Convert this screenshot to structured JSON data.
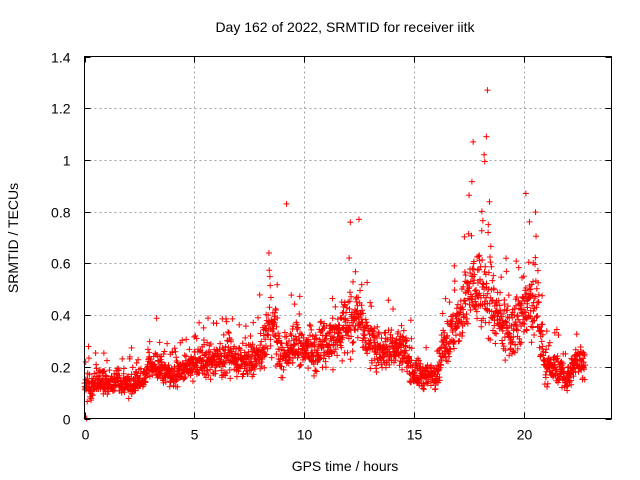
{
  "chart_data": {
    "type": "scatter",
    "title": "Day 162 of 2022, SRMTID for receiver iitk",
    "xlabel": "GPS time / hours",
    "ylabel": "SRMTID / TECUs",
    "xlim": [
      0,
      24
    ],
    "ylim": [
      0,
      1.4
    ],
    "xticks": [
      0,
      5,
      10,
      15,
      20
    ],
    "yticks": [
      0,
      0.2,
      0.4,
      0.6,
      0.8,
      1,
      1.2,
      1.4
    ],
    "xtick_labels": [
      "0",
      "5",
      "10",
      "15",
      "20"
    ],
    "ytick_labels": [
      "0",
      "0.2",
      "0.4",
      "0.6",
      "0.8",
      "1",
      "1.2",
      "1.4"
    ],
    "grid": true,
    "marker": "+",
    "color": "#ff0000",
    "series": [
      {
        "name": "SRMTID",
        "envelope": {
          "hours": [
            0,
            0.5,
            1,
            1.5,
            2,
            2.5,
            3,
            3.5,
            4,
            4.5,
            5,
            5.5,
            6,
            6.5,
            7,
            7.5,
            8,
            8.5,
            9,
            9.5,
            10,
            10.5,
            11,
            11.5,
            12,
            12.5,
            13,
            13.5,
            14,
            14.5,
            15,
            15.5,
            16,
            16.5,
            17,
            17.5,
            18,
            18.5,
            19,
            19.5,
            20,
            20.5,
            21,
            21.5,
            22,
            22.5,
            22.8
          ],
          "center": [
            0.12,
            0.13,
            0.14,
            0.14,
            0.13,
            0.14,
            0.2,
            0.2,
            0.17,
            0.19,
            0.22,
            0.22,
            0.23,
            0.24,
            0.22,
            0.22,
            0.24,
            0.38,
            0.22,
            0.3,
            0.27,
            0.26,
            0.3,
            0.32,
            0.38,
            0.4,
            0.28,
            0.27,
            0.27,
            0.28,
            0.18,
            0.16,
            0.17,
            0.3,
            0.36,
            0.48,
            0.52,
            0.45,
            0.35,
            0.33,
            0.42,
            0.45,
            0.2,
            0.19,
            0.15,
            0.24,
            0.2
          ],
          "spread": [
            0.06,
            0.07,
            0.07,
            0.06,
            0.06,
            0.07,
            0.08,
            0.08,
            0.07,
            0.08,
            0.09,
            0.09,
            0.1,
            0.1,
            0.09,
            0.1,
            0.1,
            0.2,
            0.1,
            0.12,
            0.1,
            0.12,
            0.14,
            0.15,
            0.17,
            0.18,
            0.12,
            0.12,
            0.11,
            0.12,
            0.09,
            0.08,
            0.09,
            0.14,
            0.16,
            0.22,
            0.26,
            0.2,
            0.15,
            0.15,
            0.2,
            0.2,
            0.09,
            0.08,
            0.07,
            0.1,
            0.08
          ],
          "samples_per_hour": 100
        },
        "notable_points": [
          {
            "x": 9.2,
            "y": 0.83
          },
          {
            "x": 18.35,
            "y": 1.27
          },
          {
            "x": 18.3,
            "y": 1.09
          },
          {
            "x": 17.7,
            "y": 1.07
          },
          {
            "x": 18.2,
            "y": 1.02
          },
          {
            "x": 20.1,
            "y": 0.87
          },
          {
            "x": 12.5,
            "y": 0.77
          },
          {
            "x": 8.4,
            "y": 0.64
          },
          {
            "x": 0.1,
            "y": 0.0
          }
        ]
      }
    ]
  }
}
